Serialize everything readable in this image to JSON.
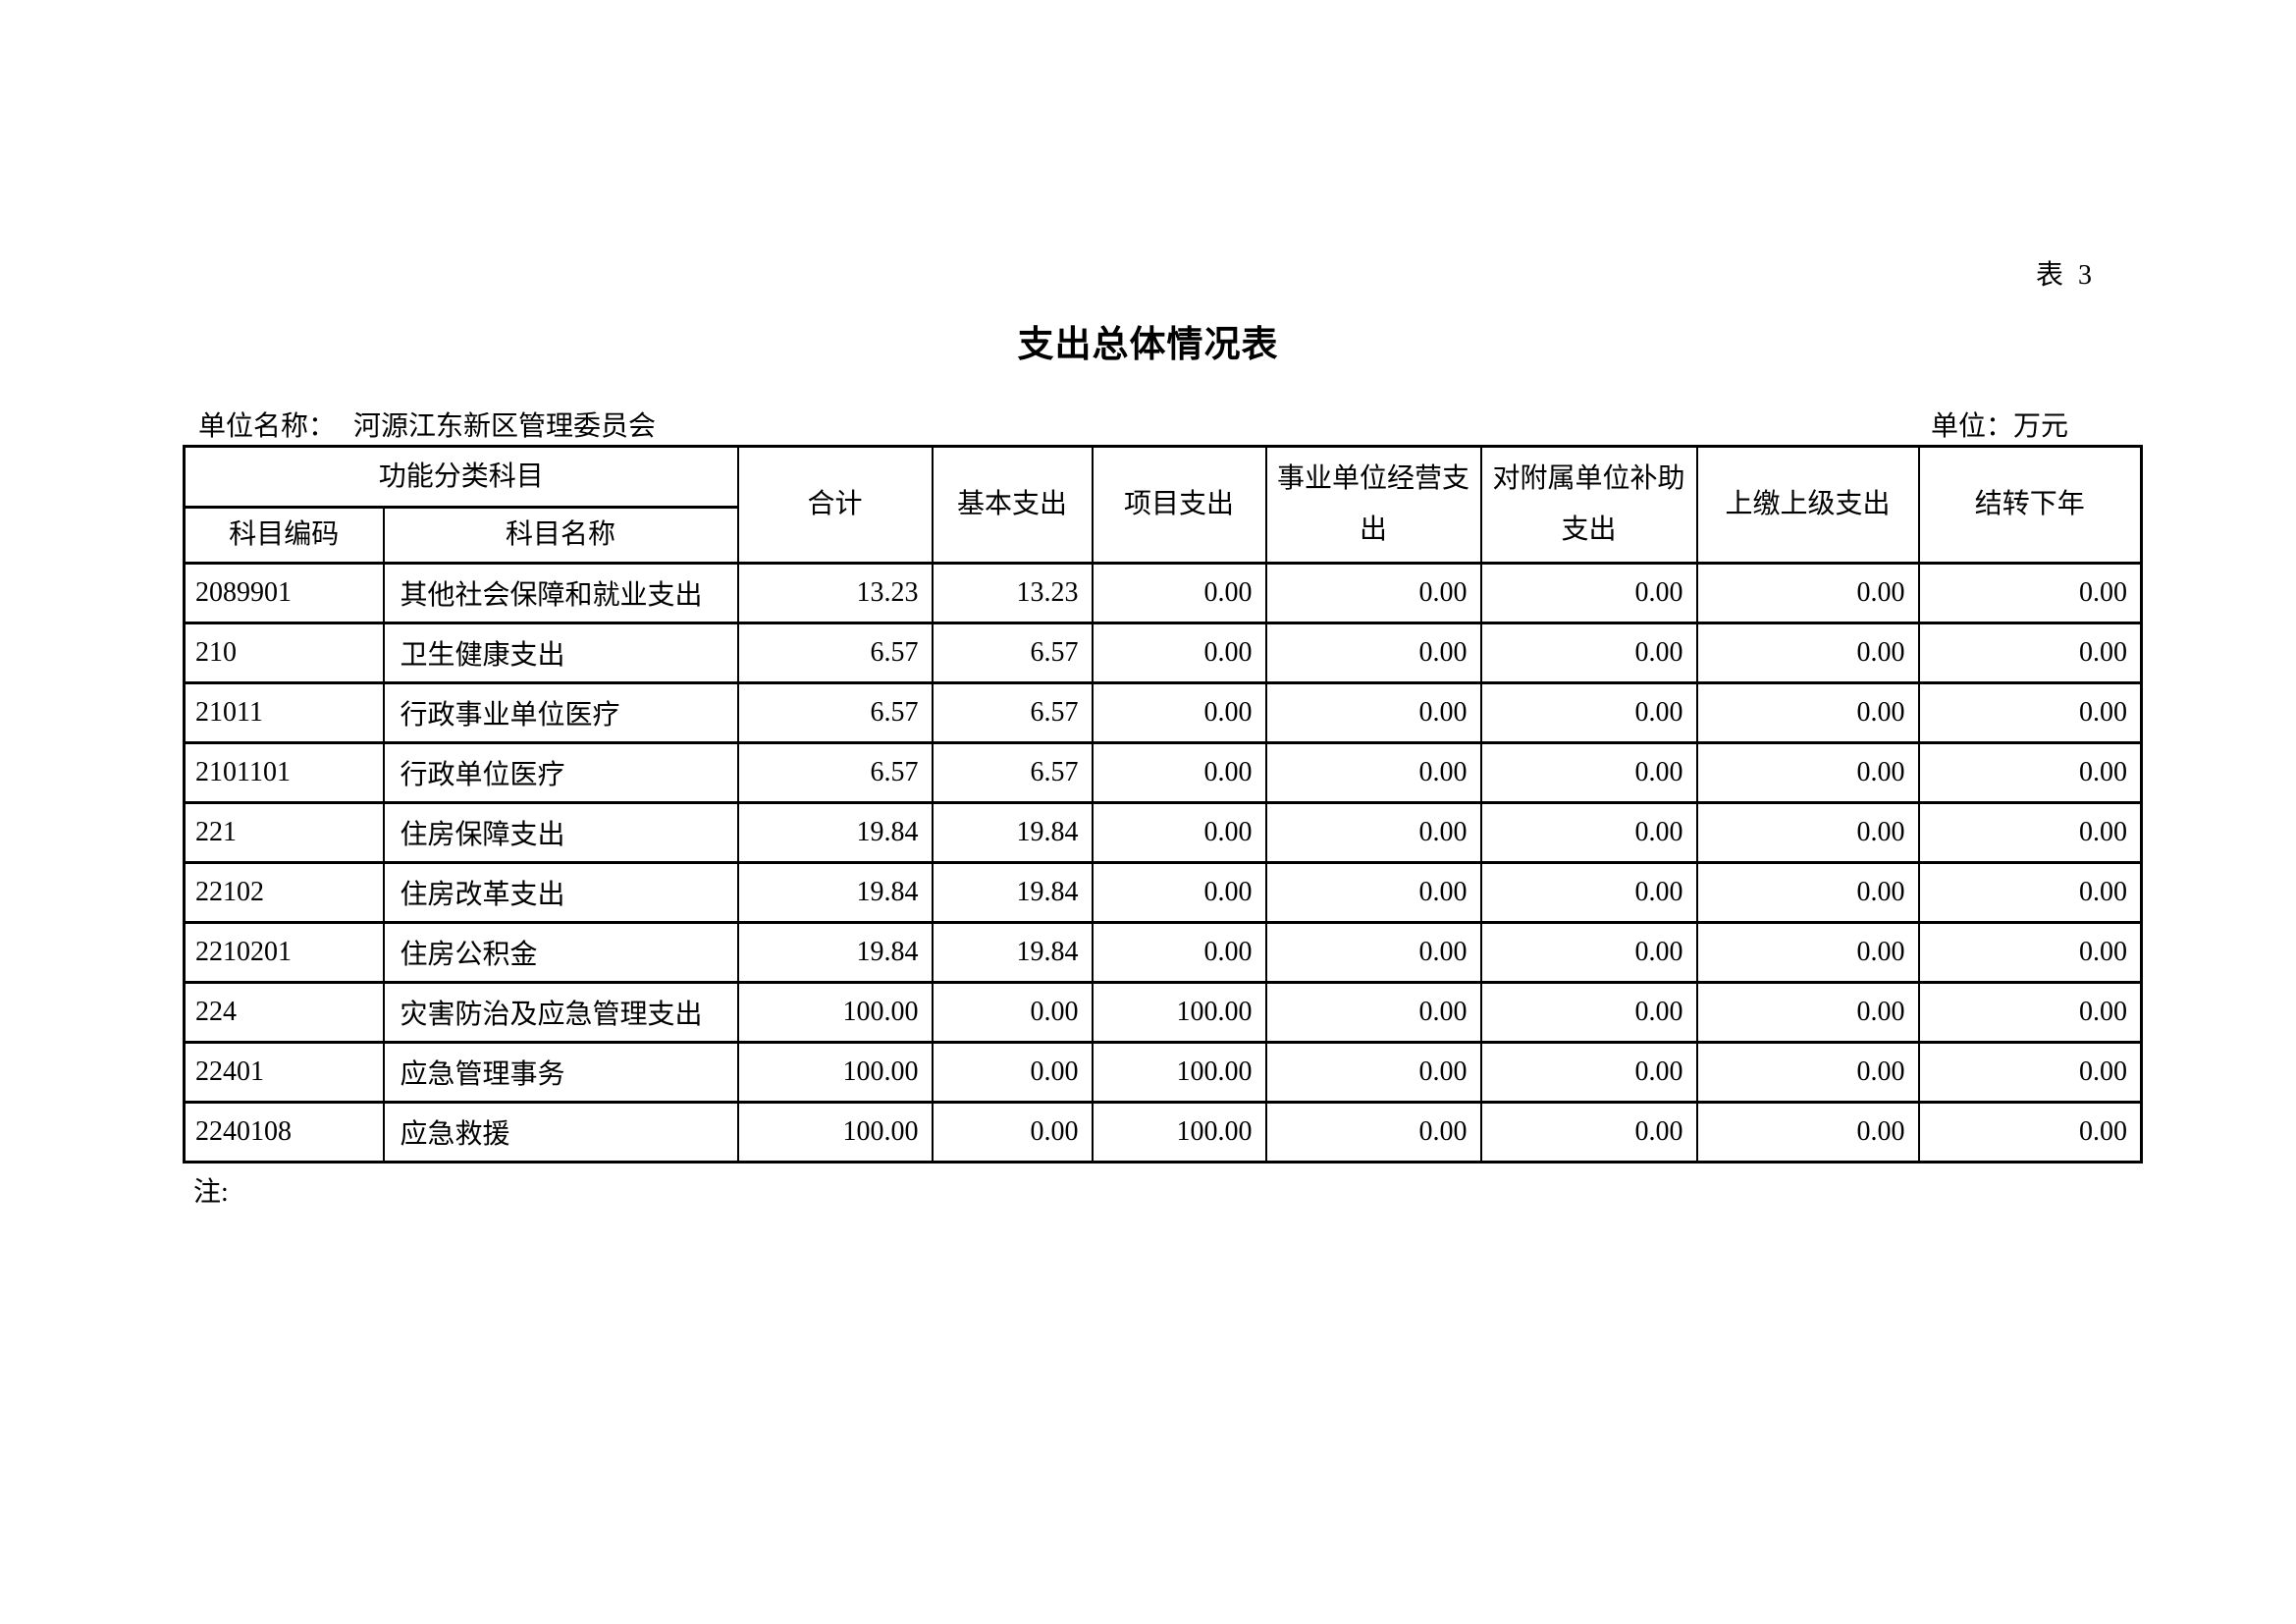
{
  "page": {
    "sheet_label": "表 3",
    "title": "支出总体情况表",
    "unit_name_label": "单位名称：",
    "unit_name_value": "河源江东新区管理委员会",
    "currency_unit_label": "单位：万元",
    "note": "注:"
  },
  "colors": {
    "text": "#000000",
    "background": "#ffffff",
    "border": "#000000"
  },
  "table": {
    "header": {
      "func_group": "功能分类科目",
      "code": "科目编码",
      "name": "科目名称",
      "total": "合计",
      "basic": "基本支出",
      "project": "项目支出",
      "operating": "事业单位经营支出",
      "subsidy": "对附属单位补助支出",
      "upper_remit": "上缴上级支出",
      "carryover": "结转下年"
    },
    "rows": [
      {
        "code": "2089901",
        "name": "其他社会保障和就业支出",
        "values": [
          "13.23",
          "13.23",
          "0.00",
          "0.00",
          "0.00",
          "0.00",
          "0.00"
        ]
      },
      {
        "code": "210",
        "name": "卫生健康支出",
        "values": [
          "6.57",
          "6.57",
          "0.00",
          "0.00",
          "0.00",
          "0.00",
          "0.00"
        ]
      },
      {
        "code": "21011",
        "name": "行政事业单位医疗",
        "values": [
          "6.57",
          "6.57",
          "0.00",
          "0.00",
          "0.00",
          "0.00",
          "0.00"
        ]
      },
      {
        "code": "2101101",
        "name": "行政单位医疗",
        "values": [
          "6.57",
          "6.57",
          "0.00",
          "0.00",
          "0.00",
          "0.00",
          "0.00"
        ]
      },
      {
        "code": "221",
        "name": "住房保障支出",
        "values": [
          "19.84",
          "19.84",
          "0.00",
          "0.00",
          "0.00",
          "0.00",
          "0.00"
        ]
      },
      {
        "code": "22102",
        "name": "住房改革支出",
        "values": [
          "19.84",
          "19.84",
          "0.00",
          "0.00",
          "0.00",
          "0.00",
          "0.00"
        ]
      },
      {
        "code": "2210201",
        "name": "住房公积金",
        "values": [
          "19.84",
          "19.84",
          "0.00",
          "0.00",
          "0.00",
          "0.00",
          "0.00"
        ]
      },
      {
        "code": "224",
        "name": "灾害防治及应急管理支出",
        "values": [
          "100.00",
          "0.00",
          "100.00",
          "0.00",
          "0.00",
          "0.00",
          "0.00"
        ]
      },
      {
        "code": "22401",
        "name": "应急管理事务",
        "values": [
          "100.00",
          "0.00",
          "100.00",
          "0.00",
          "0.00",
          "0.00",
          "0.00"
        ]
      },
      {
        "code": "2240108",
        "name": "应急救援",
        "values": [
          "100.00",
          "0.00",
          "100.00",
          "0.00",
          "0.00",
          "0.00",
          "0.00"
        ]
      }
    ]
  }
}
